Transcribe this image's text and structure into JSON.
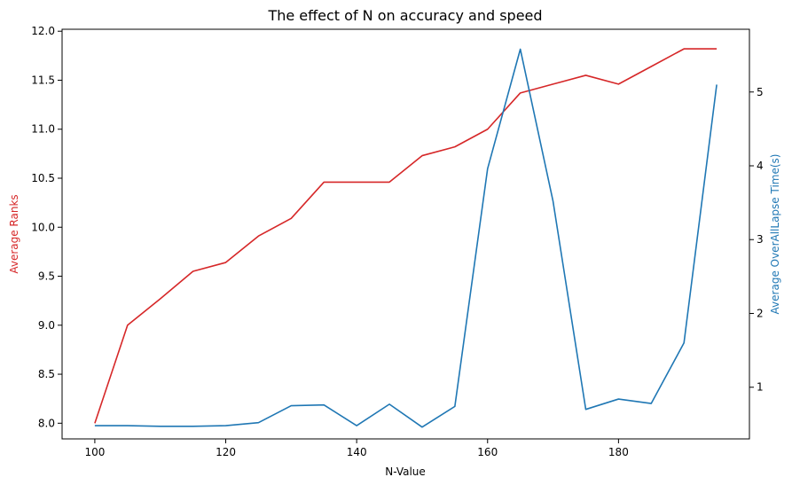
{
  "chart_data": {
    "type": "line",
    "title": "The effect of N on accuracy and speed",
    "xlabel": "N-Value",
    "y1label": "Average Ranks",
    "y2label": "Average OverAllLapse Time(s)",
    "xlim": [
      95,
      200
    ],
    "y1lim": [
      7.84,
      12.02
    ],
    "y2lim": [
      0.3,
      5.85
    ],
    "xticks": [
      100,
      120,
      140,
      160,
      180
    ],
    "y1ticks": [
      "8.0",
      "8.5",
      "9.0",
      "9.5",
      "10.0",
      "10.5",
      "11.0",
      "11.5",
      "12.0"
    ],
    "y2ticks": [
      "1",
      "2",
      "3",
      "4",
      "5"
    ],
    "grid": false,
    "x": [
      100,
      105,
      110,
      115,
      120,
      125,
      130,
      135,
      140,
      145,
      150,
      155,
      160,
      165,
      170,
      175,
      180,
      185,
      190,
      195
    ],
    "series": [
      {
        "axis": "left",
        "color": "#d62728",
        "values": [
          8.0,
          9.0,
          9.27,
          9.55,
          9.64,
          9.91,
          10.09,
          10.46,
          10.46,
          10.46,
          10.73,
          10.82,
          11.0,
          11.37,
          11.46,
          11.55,
          11.46,
          11.64,
          11.82,
          11.82
        ]
      },
      {
        "axis": "right",
        "color": "#1f77b4",
        "values": [
          0.48,
          0.48,
          0.47,
          0.47,
          0.48,
          0.52,
          0.75,
          0.76,
          0.48,
          0.77,
          0.46,
          0.74,
          3.96,
          5.58,
          3.52,
          0.7,
          0.84,
          0.78,
          1.6,
          5.1
        ]
      }
    ]
  }
}
